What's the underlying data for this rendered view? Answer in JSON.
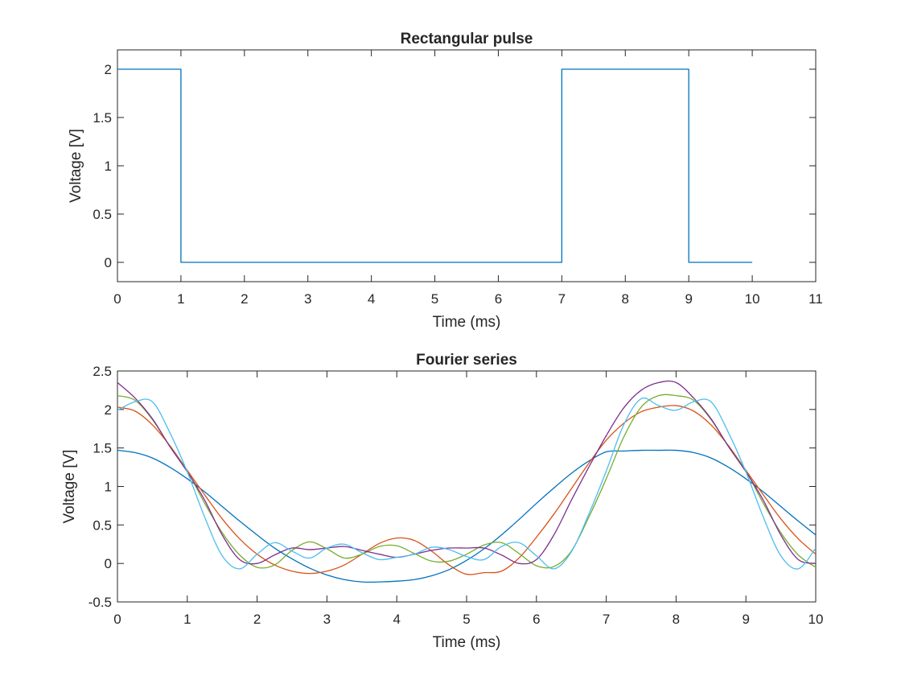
{
  "chart_data": [
    {
      "type": "line",
      "title": "Rectangular pulse",
      "xlabel": "Time (ms)",
      "ylabel": "Voltage [V]",
      "xlim": [
        0,
        11
      ],
      "ylim": [
        -0.2,
        2.2
      ],
      "xticks": [
        "0",
        "1",
        "2",
        "3",
        "4",
        "5",
        "6",
        "7",
        "8",
        "9",
        "10",
        "11"
      ],
      "yticks": [
        "0",
        "0.5",
        "1",
        "1.5",
        "2"
      ],
      "grid": false,
      "series": [
        {
          "color": "#0072bd",
          "x": [
            0,
            1,
            1,
            7,
            7,
            9,
            9,
            10
          ],
          "y": [
            2,
            2,
            0,
            0,
            2,
            2,
            0,
            0
          ]
        }
      ]
    },
    {
      "type": "line",
      "title": "Fourier series",
      "xlabel": "Time (ms)",
      "ylabel": "Voltage [V]",
      "xlim": [
        0,
        10
      ],
      "ylim": [
        -0.5,
        2.5
      ],
      "xticks": [
        "0",
        "1",
        "2",
        "3",
        "4",
        "5",
        "6",
        "7",
        "8",
        "9",
        "10"
      ],
      "yticks": [
        "-0.5",
        "0",
        "0.5",
        "1",
        "1.5",
        "2",
        "2.5"
      ],
      "grid": false,
      "x": [
        0,
        0.25,
        0.5,
        0.75,
        1,
        1.25,
        1.5,
        1.75,
        2,
        2.25,
        2.5,
        2.75,
        3,
        3.25,
        3.5,
        3.75,
        4,
        4.25,
        4.5,
        4.75,
        5,
        5.25,
        5.5,
        5.75,
        6,
        6.25,
        6.5,
        6.75,
        7,
        7.25,
        7.5,
        7.75,
        8,
        8.25,
        8.5,
        8.75,
        9,
        9.25,
        9.5,
        9.75,
        10
      ],
      "series": [
        {
          "color": "#0072bd",
          "values": [
            1.47,
            1.44,
            1.37,
            1.25,
            1.1,
            0.93,
            0.74,
            0.55,
            0.37,
            0.2,
            0.06,
            -0.06,
            -0.15,
            -0.21,
            -0.24,
            -0.24,
            -0.23,
            -0.21,
            -0.16,
            -0.08,
            0.04,
            0.19,
            0.37,
            0.57,
            0.78,
            0.98,
            1.17,
            1.33,
            1.45,
            1.46,
            1.47,
            1.47,
            1.47,
            1.44,
            1.37,
            1.25,
            1.1,
            0.93,
            0.74,
            0.55,
            0.37
          ]
        },
        {
          "color": "#d95319",
          "values": [
            2.03,
            1.98,
            1.8,
            1.53,
            1.21,
            0.89,
            0.58,
            0.32,
            0.12,
            -0.02,
            -0.1,
            -0.13,
            -0.1,
            -0.02,
            0.12,
            0.26,
            0.33,
            0.3,
            0.16,
            -0.02,
            -0.14,
            -0.12,
            -0.1,
            0.07,
            0.34,
            0.64,
            0.97,
            1.3,
            1.6,
            1.82,
            1.97,
            2.03,
            2.05,
            1.98,
            1.8,
            1.53,
            1.21,
            0.89,
            0.58,
            0.32,
            0.12
          ]
        },
        {
          "color": "#77ac30",
          "values": [
            2.18,
            2.12,
            1.87,
            1.52,
            1.2,
            0.78,
            0.4,
            0.11,
            -0.05,
            -0.02,
            0.17,
            0.28,
            0.19,
            0.07,
            0.12,
            0.22,
            0.23,
            0.13,
            0.03,
            0.03,
            0.12,
            0.24,
            0.27,
            0.13,
            -0.03,
            -0.04,
            0.16,
            0.6,
            1.1,
            1.64,
            2.03,
            2.18,
            2.18,
            2.12,
            1.87,
            1.52,
            1.2,
            0.78,
            0.4,
            0.11,
            -0.05
          ]
        },
        {
          "color": "#7e2f8e",
          "values": [
            2.35,
            2.15,
            1.88,
            1.52,
            1.19,
            0.82,
            0.37,
            0.05,
            0.0,
            0.11,
            0.2,
            0.18,
            0.2,
            0.22,
            0.17,
            0.12,
            0.08,
            0.12,
            0.17,
            0.2,
            0.2,
            0.2,
            0.11,
            0.0,
            0.05,
            0.37,
            0.82,
            1.25,
            1.66,
            2.02,
            2.25,
            2.35,
            2.35,
            2.15,
            1.88,
            1.52,
            1.19,
            0.82,
            0.37,
            0.05,
            0.0
          ]
        },
        {
          "color": "#4dbeee",
          "values": [
            1.99,
            2.1,
            2.1,
            1.7,
            1.19,
            0.6,
            0.1,
            -0.07,
            0.12,
            0.27,
            0.16,
            0.07,
            0.2,
            0.25,
            0.14,
            0.05,
            0.08,
            0.12,
            0.21,
            0.18,
            0.09,
            0.05,
            0.22,
            0.27,
            0.1,
            -0.07,
            0.15,
            0.64,
            1.2,
            1.8,
            2.14,
            2.05,
            1.99,
            2.1,
            2.1,
            1.7,
            1.19,
            0.6,
            0.1,
            -0.07,
            0.2
          ]
        }
      ]
    }
  ]
}
